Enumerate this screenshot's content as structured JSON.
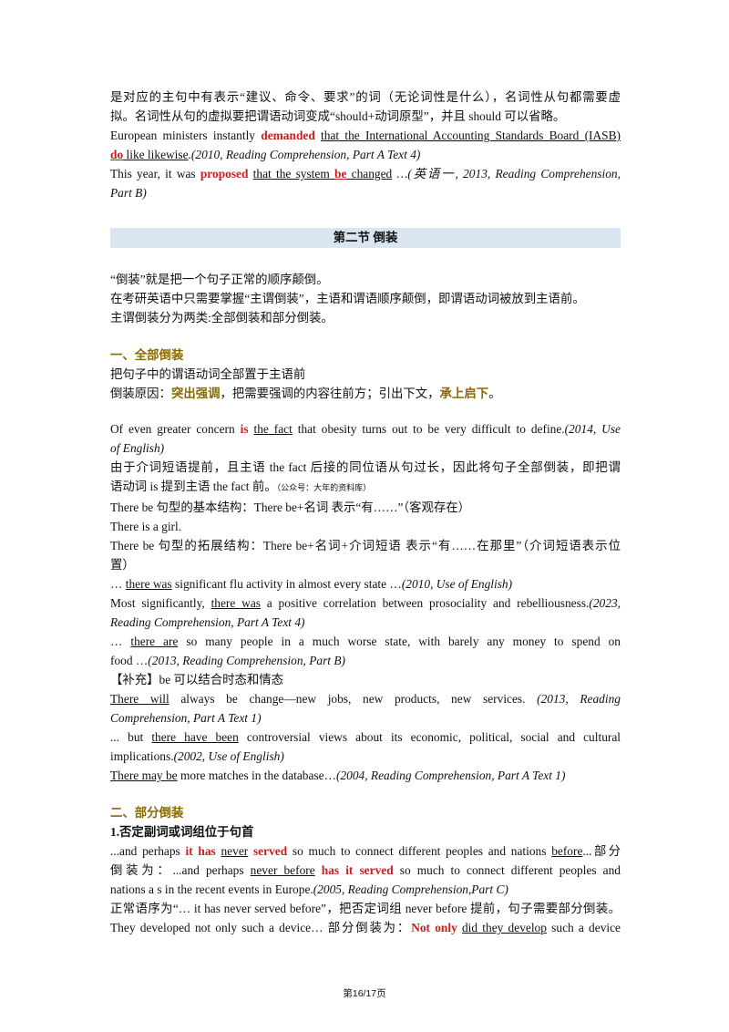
{
  "p1": {
    "l1": "是对应的主句中有表示“建议、命令、要求”的词（无论词性是什么），名词性从句都需要虚",
    "l2": "拟。名词性从句的虚拟要把谓语动词变成“should+动词原型”，并且 should 可以省略。"
  },
  "ex1": {
    "a": "European ministers instantly ",
    "kw": "demanded",
    "sp": " ",
    "ul": "that the International Accounting Standards Board (IASB)",
    "kw2": "do",
    "ul2": " like likewise",
    "src": ".(2010, Reading Comprehension, Part A Text 4)"
  },
  "ex2": {
    "a": "This year, it was ",
    "kw": "proposed",
    "sp": " ",
    "ul1": "that the system ",
    "kw2": "be",
    "ul2": " changed",
    "src": " …(英语一, 2013, Reading Comprehension,",
    "src2": "Part B)"
  },
  "section_title": "第二节 倒装",
  "intro": {
    "l1": "“倒装”就是把一个句子正常的顺序颠倒。",
    "l2": "在考研英语中只需要掌握“主谓倒装”，主语和谓语顺序颠倒，即谓语动词被放到主语前。",
    "l3": "主谓倒装分为两类:全部倒装和部分倒装。"
  },
  "h1": "一、全部倒装",
  "full": {
    "def": "把句子中的谓语动词全部置于主语前",
    "reason_a": "倒装原因：",
    "reason_kw1": "突出强调",
    "reason_b": "，把需要强调的内容往前方；引出下文，",
    "reason_kw2": "承上启下",
    "reason_c": "。"
  },
  "ex3": {
    "a": "Of even greater concern ",
    "kw": "is",
    "sp": " ",
    "ul": "the fact",
    "b": " that obesity turns out to be very difficult to define.",
    "src": "(2014, Use",
    "src2": "of English)"
  },
  "expl1": {
    "l1": "由于介词短语提前，且主语 the fact 后接的同位语从句过长，因此将句子全部倒装，即把谓",
    "l2": "语动词 is 提到主语 the fact 前。",
    "note": "（公众号：大年的资料库）"
  },
  "therebe": {
    "basic": "There be 句型的基本结构：There be+名词  表示“有……”（客观存在）",
    "ex": "There is a girl.",
    "ext1": "There be 句型的拓展结构：There be+名词+介词短语  表示“有……在那里”（介词短语表示位",
    "ext2": "置）"
  },
  "ex4": {
    "a": "… ",
    "ul": "there was",
    "b": " significant flu activity in almost every state …",
    "src": "(2010, Use of English)"
  },
  "ex5": {
    "a": "Most significantly, ",
    "ul": "there was",
    "b": " a positive correlation between prosociality and rebelliousness.",
    "src": "(2023,",
    "src2": "Reading Comprehension, Part A Text 4)"
  },
  "ex6": {
    "l1a": "…",
    "ul": "there are",
    "l1b": "so many people in a much worse state, with barely any money to spend on",
    "l2": "food …",
    "src": "(2013, Reading Comprehension, Part B)"
  },
  "supp": "【补充】be 可以结合时态和情态",
  "ex7": {
    "ul": "There will",
    "l1": "always be change—new jobs, new products, new services.",
    "src1": "(2013, Reading",
    "src2": "Comprehension, Part A Text 1)"
  },
  "ex8": {
    "a": "...",
    "b": "but",
    "ul": "there have been",
    "c": "controversial views about its economic, political, social and cultural",
    "l2": "implications.",
    "src": "(2002, Use of English)"
  },
  "ex9": {
    "ul": "There may be",
    "b": " more matches in the database…",
    "src": "(2004, Reading Comprehension, Part A Text 1)"
  },
  "h2": "二、部分倒装",
  "sub1": "1.否定副词或词组位于句首",
  "ex10": {
    "a": "...and perhaps ",
    "kw1": "it has",
    "sp": " ",
    "ul1": "never",
    "kw2": "served",
    "b": " so much to connect different peoples and nations ",
    "ul2": "before",
    "c": "...部分",
    "d": "倒装为：...and perhaps ",
    "ul3": "never before",
    "kw3": "has it served",
    "e": " so much to connect different peoples and",
    "f": "nations a s in the recent events in Europe.",
    "src": "(2005, Reading Comprehension,Part C)"
  },
  "expl2": "正常语序为“… it has never served before”，把否定词组 never before 提前，句子需要部分倒装。",
  "ex11": {
    "a": "They developed not only such a device… 部分倒装为：",
    "kw": "Not only",
    "sp": " ",
    "ul": "did they develop",
    "b": " such a device"
  },
  "footer": "第16/17页"
}
